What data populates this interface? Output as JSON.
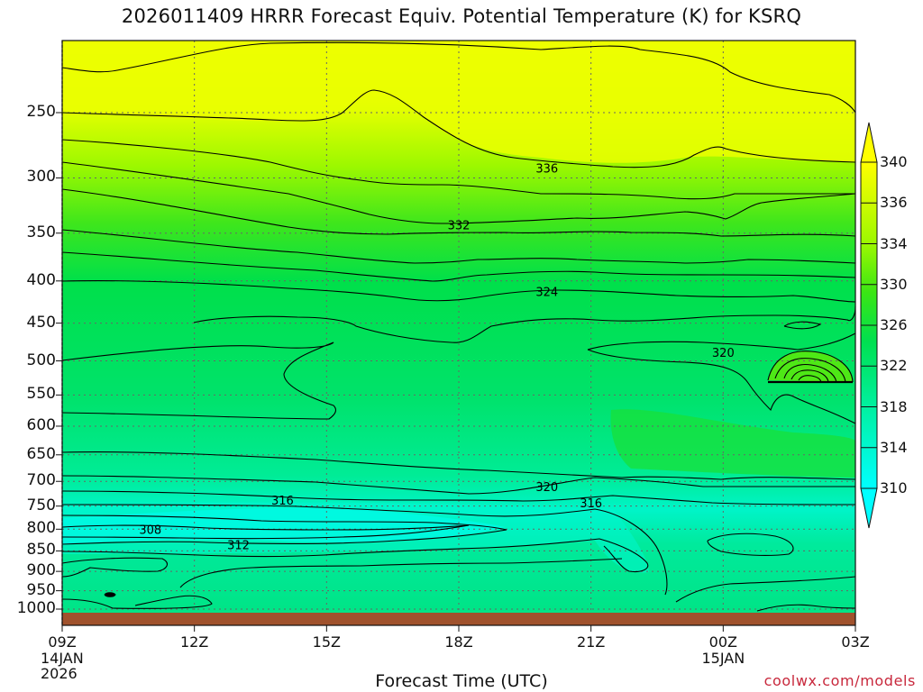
{
  "title": "2026011409 HRRR Forecast Equiv. Potential Temperature (K) for KSRQ",
  "xlabel": "Forecast Time (UTC)",
  "credit": "coolwx.com/models",
  "x_ticks": [
    "09Z",
    "12Z",
    "15Z",
    "18Z",
    "21Z",
    "00Z",
    "03Z"
  ],
  "x_dates": [
    {
      "at": "09Z",
      "lines": [
        "14JAN",
        "2026"
      ]
    },
    {
      "at": "00Z",
      "lines": [
        "15JAN"
      ]
    }
  ],
  "y_ticks": [
    250,
    300,
    350,
    400,
    450,
    500,
    550,
    600,
    650,
    700,
    750,
    800,
    850,
    900,
    950,
    1000
  ],
  "colorbar": {
    "levels": [
      310,
      314,
      318,
      322,
      326,
      330,
      334,
      336,
      340
    ],
    "labels": [
      "310",
      "314",
      "318",
      "322",
      "326",
      "330",
      "334",
      "336",
      "340"
    ],
    "colors": [
      "#00ffff",
      "#00f0b4",
      "#00e878",
      "#00e050",
      "#2ee61e",
      "#7ef00a",
      "#b8ff00",
      "#deff00",
      "#ffff00"
    ]
  },
  "chart_data": {
    "type": "heatmap",
    "title": "2026011409 HRRR Forecast Equiv. Potential Temperature (K) for KSRQ",
    "xlabel": "Forecast Time (UTC)",
    "ylabel": "",
    "x": [
      "09Z",
      "12Z",
      "15Z",
      "18Z",
      "21Z",
      "00Z",
      "03Z"
    ],
    "y_pressure_hpa": [
      1000,
      950,
      900,
      850,
      800,
      750,
      700,
      650,
      600,
      550,
      500,
      450,
      400,
      350,
      300,
      250
    ],
    "y_reversed": true,
    "grid": true,
    "contour_labels": [
      {
        "value": 336,
        "x": "20Z",
        "pressure": 292
      },
      {
        "value": 332,
        "x": "18Z",
        "pressure": 342
      },
      {
        "value": 324,
        "x": "20Z",
        "pressure": 412
      },
      {
        "value": 320,
        "x": "00Z",
        "pressure": 488
      },
      {
        "value": 320,
        "x": "20Z",
        "pressure": 710
      },
      {
        "value": 316,
        "x": "14Z",
        "pressure": 738
      },
      {
        "value": 316,
        "x": "21Z",
        "pressure": 743
      },
      {
        "value": 308,
        "x": "11Z",
        "pressure": 800
      },
      {
        "value": 312,
        "x": "13Z",
        "pressure": 835
      }
    ]
  }
}
